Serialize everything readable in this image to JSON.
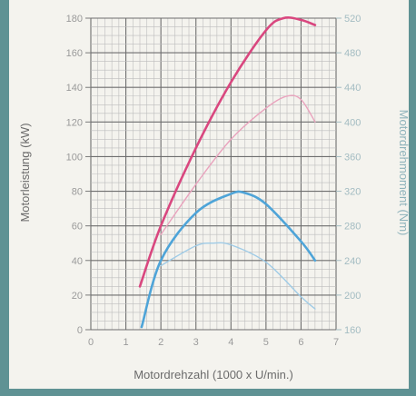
{
  "chart_data": {
    "type": "line",
    "xlabel": "Motordrehzahl (1000 x U/min.)",
    "ylabel": "Motorleistung (kW)",
    "y2label": "Motordrehmoment (Nm)",
    "xlim": [
      0,
      7
    ],
    "ylim": [
      0,
      180
    ],
    "y2lim": [
      160,
      520
    ],
    "x_ticks": [
      "0",
      "1",
      "2",
      "3",
      "4",
      "5",
      "6",
      "7"
    ],
    "y_ticks": [
      "0",
      "20",
      "40",
      "60",
      "80",
      "100",
      "120",
      "140",
      "160",
      "180"
    ],
    "y2_ticks": [
      "160",
      "200",
      "240",
      "280",
      "320",
      "360",
      "400",
      "440",
      "480",
      "520"
    ],
    "grid": true,
    "series": [
      {
        "color": "#d9477f",
        "style": "solid",
        "axis": "left",
        "points": [
          [
            1.4,
            25
          ],
          [
            2.0,
            60
          ],
          [
            3.0,
            105
          ],
          [
            4.0,
            143
          ],
          [
            5.0,
            173
          ],
          [
            5.5,
            180
          ],
          [
            6.0,
            179
          ],
          [
            6.4,
            176
          ]
        ]
      },
      {
        "color": "#e9a3bd",
        "style": "thin",
        "axis": "left",
        "points": [
          [
            2.0,
            55
          ],
          [
            3.0,
            84
          ],
          [
            4.0,
            110
          ],
          [
            5.0,
            128
          ],
          [
            5.6,
            135
          ],
          [
            6.0,
            133
          ],
          [
            6.4,
            120
          ]
        ]
      },
      {
        "color": "#4ea4d8",
        "style": "solid",
        "axis": "right",
        "points": [
          [
            1.45,
            163
          ],
          [
            2.0,
            240
          ],
          [
            3.0,
            295
          ],
          [
            4.0,
            317
          ],
          [
            4.4,
            318
          ],
          [
            5.0,
            305
          ],
          [
            6.0,
            262
          ],
          [
            6.4,
            240
          ]
        ]
      },
      {
        "color": "#9fcbe6",
        "style": "thin",
        "axis": "right",
        "points": [
          [
            2.0,
            234
          ],
          [
            3.0,
            257
          ],
          [
            3.5,
            260
          ],
          [
            4.0,
            258
          ],
          [
            5.0,
            238
          ],
          [
            6.0,
            198
          ],
          [
            6.4,
            184
          ]
        ]
      }
    ]
  }
}
